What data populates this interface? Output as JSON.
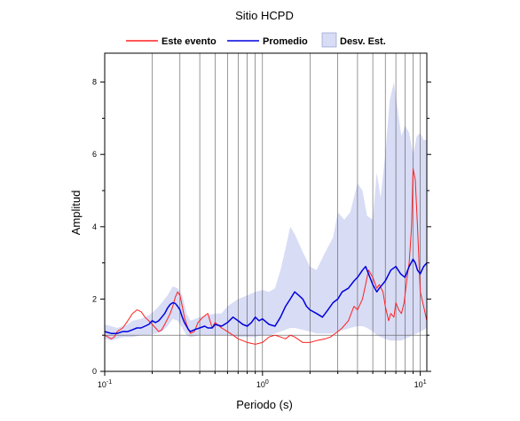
{
  "chart_data": {
    "type": "line",
    "title": "Sitio HCPD",
    "xlabel": "Periodo (s)",
    "ylabel": "Amplitud",
    "xscale": "log",
    "xlim": [
      0.1,
      11
    ],
    "ylim": [
      0,
      8.8
    ],
    "grid": "vertical log grid",
    "legend_position": "top",
    "x_ticks": [
      {
        "value": 0.1,
        "base": "10",
        "exp": "-1"
      },
      {
        "value": 1,
        "base": "10",
        "exp": "0"
      },
      {
        "value": 10,
        "base": "10",
        "exp": "1"
      }
    ],
    "y_ticks": [
      0,
      2,
      4,
      6,
      8
    ],
    "legend": [
      {
        "label": "Este evento",
        "kind": "line",
        "color": "#ff2020"
      },
      {
        "label": "Promedio",
        "kind": "line",
        "color": "#0000dd"
      },
      {
        "label": "Desv. Est.",
        "kind": "band",
        "color": "#d8dcf5"
      }
    ],
    "series": [
      {
        "name": "Este evento",
        "color": "#ff2020",
        "x": [
          0.1,
          0.105,
          0.11,
          0.115,
          0.12,
          0.13,
          0.14,
          0.15,
          0.16,
          0.17,
          0.18,
          0.19,
          0.2,
          0.21,
          0.22,
          0.23,
          0.24,
          0.25,
          0.26,
          0.27,
          0.28,
          0.29,
          0.3,
          0.31,
          0.32,
          0.33,
          0.34,
          0.35,
          0.37,
          0.39,
          0.42,
          0.45,
          0.48,
          0.5,
          0.55,
          0.6,
          0.65,
          0.7,
          0.75,
          0.8,
          0.9,
          1.0,
          1.1,
          1.2,
          1.3,
          1.4,
          1.5,
          1.6,
          1.8,
          2.0,
          2.2,
          2.5,
          2.7,
          3.0,
          3.2,
          3.5,
          3.8,
          4.0,
          4.3,
          4.5,
          4.7,
          5.0,
          5.3,
          5.5,
          5.8,
          6.0,
          6.3,
          6.5,
          6.8,
          7.0,
          7.3,
          7.6,
          7.9,
          8.2,
          8.5,
          8.8,
          9.0,
          9.3,
          9.6,
          10.0,
          10.5,
          11.0
        ],
        "y": [
          1.0,
          0.95,
          0.9,
          0.95,
          1.1,
          1.2,
          1.4,
          1.6,
          1.7,
          1.65,
          1.5,
          1.4,
          1.3,
          1.2,
          1.1,
          1.15,
          1.3,
          1.45,
          1.6,
          1.8,
          2.05,
          2.2,
          2.1,
          1.8,
          1.5,
          1.3,
          1.15,
          1.05,
          1.1,
          1.35,
          1.5,
          1.6,
          1.2,
          1.35,
          1.2,
          1.1,
          1.0,
          0.9,
          0.85,
          0.8,
          0.75,
          0.8,
          0.95,
          1.0,
          0.95,
          0.9,
          1.0,
          0.95,
          0.8,
          0.8,
          0.85,
          0.9,
          0.95,
          1.1,
          1.2,
          1.4,
          1.8,
          1.7,
          2.0,
          2.4,
          2.8,
          2.6,
          2.3,
          2.4,
          2.2,
          1.8,
          1.4,
          1.6,
          1.5,
          1.9,
          1.7,
          1.6,
          1.9,
          2.5,
          3.0,
          4.0,
          5.6,
          5.3,
          4.0,
          2.2,
          1.8,
          1.4
        ]
      },
      {
        "name": "Promedio",
        "color": "#0000dd",
        "x": [
          0.1,
          0.11,
          0.12,
          0.13,
          0.14,
          0.15,
          0.16,
          0.17,
          0.18,
          0.19,
          0.2,
          0.21,
          0.22,
          0.23,
          0.24,
          0.25,
          0.26,
          0.27,
          0.28,
          0.29,
          0.3,
          0.31,
          0.32,
          0.33,
          0.34,
          0.35,
          0.37,
          0.4,
          0.43,
          0.45,
          0.48,
          0.5,
          0.55,
          0.6,
          0.65,
          0.7,
          0.75,
          0.8,
          0.85,
          0.9,
          0.95,
          1.0,
          1.1,
          1.2,
          1.3,
          1.4,
          1.5,
          1.6,
          1.7,
          1.8,
          1.9,
          2.0,
          2.2,
          2.4,
          2.6,
          2.8,
          3.0,
          3.2,
          3.5,
          3.8,
          4.0,
          4.3,
          4.5,
          4.7,
          5.0,
          5.3,
          5.5,
          6.0,
          6.5,
          7.0,
          7.5,
          8.0,
          8.5,
          9.0,
          9.3,
          9.6,
          10.0,
          10.5,
          11.0
        ],
        "y": [
          1.1,
          1.05,
          1.05,
          1.1,
          1.1,
          1.15,
          1.2,
          1.2,
          1.25,
          1.3,
          1.4,
          1.35,
          1.4,
          1.5,
          1.6,
          1.75,
          1.85,
          1.9,
          1.88,
          1.8,
          1.7,
          1.5,
          1.35,
          1.25,
          1.15,
          1.1,
          1.15,
          1.2,
          1.25,
          1.2,
          1.2,
          1.3,
          1.25,
          1.35,
          1.5,
          1.4,
          1.3,
          1.25,
          1.35,
          1.5,
          1.4,
          1.45,
          1.3,
          1.25,
          1.5,
          1.8,
          2.0,
          2.2,
          2.1,
          2.0,
          1.8,
          1.7,
          1.6,
          1.5,
          1.7,
          1.9,
          2.0,
          2.2,
          2.3,
          2.5,
          2.6,
          2.8,
          2.9,
          2.7,
          2.4,
          2.2,
          2.3,
          2.5,
          2.8,
          2.9,
          2.7,
          2.6,
          2.9,
          3.1,
          3.0,
          2.8,
          2.7,
          2.9,
          3.0
        ]
      }
    ],
    "band": {
      "name": "Desv. Est.",
      "color": "#d8dcf5",
      "x": [
        0.1,
        0.11,
        0.12,
        0.13,
        0.14,
        0.15,
        0.17,
        0.19,
        0.21,
        0.23,
        0.25,
        0.27,
        0.29,
        0.31,
        0.33,
        0.35,
        0.4,
        0.45,
        0.5,
        0.55,
        0.6,
        0.7,
        0.8,
        0.9,
        1.0,
        1.1,
        1.2,
        1.3,
        1.4,
        1.5,
        1.6,
        1.8,
        2.0,
        2.2,
        2.5,
        2.8,
        3.0,
        3.3,
        3.6,
        4.0,
        4.3,
        4.6,
        5.0,
        5.3,
        5.6,
        6.0,
        6.4,
        6.8,
        7.2,
        7.6,
        8.0,
        8.5,
        9.0,
        9.5,
        10.0,
        10.5,
        11.0
      ],
      "upper": [
        1.3,
        1.25,
        1.2,
        1.25,
        1.3,
        1.4,
        1.45,
        1.55,
        1.7,
        1.9,
        2.1,
        2.35,
        2.3,
        2.1,
        1.6,
        1.4,
        1.5,
        1.55,
        1.6,
        1.6,
        1.8,
        2.0,
        2.1,
        2.2,
        2.25,
        2.2,
        2.3,
        2.8,
        3.4,
        4.0,
        3.8,
        3.3,
        2.9,
        2.8,
        3.3,
        3.7,
        4.4,
        4.2,
        4.4,
        5.2,
        5.0,
        4.3,
        4.2,
        5.5,
        4.8,
        6.0,
        7.5,
        8.0,
        7.2,
        6.5,
        6.8,
        6.6,
        6.0,
        6.5,
        6.6,
        6.4,
        6.4
      ],
      "lower": [
        0.9,
        0.85,
        0.9,
        0.95,
        0.95,
        0.95,
        1.0,
        1.0,
        1.05,
        1.1,
        1.25,
        1.45,
        1.4,
        1.2,
        1.0,
        0.95,
        1.0,
        1.0,
        1.0,
        1.0,
        1.0,
        0.95,
        0.95,
        0.95,
        1.0,
        1.0,
        1.05,
        1.1,
        1.15,
        1.2,
        1.2,
        1.15,
        1.1,
        1.05,
        1.05,
        1.05,
        1.1,
        1.15,
        1.2,
        1.25,
        1.25,
        1.2,
        1.1,
        1.0,
        0.95,
        0.9,
        0.85,
        0.85,
        0.85,
        0.85,
        0.9,
        0.95,
        1.0,
        1.05,
        1.1,
        1.15,
        1.2
      ]
    }
  }
}
